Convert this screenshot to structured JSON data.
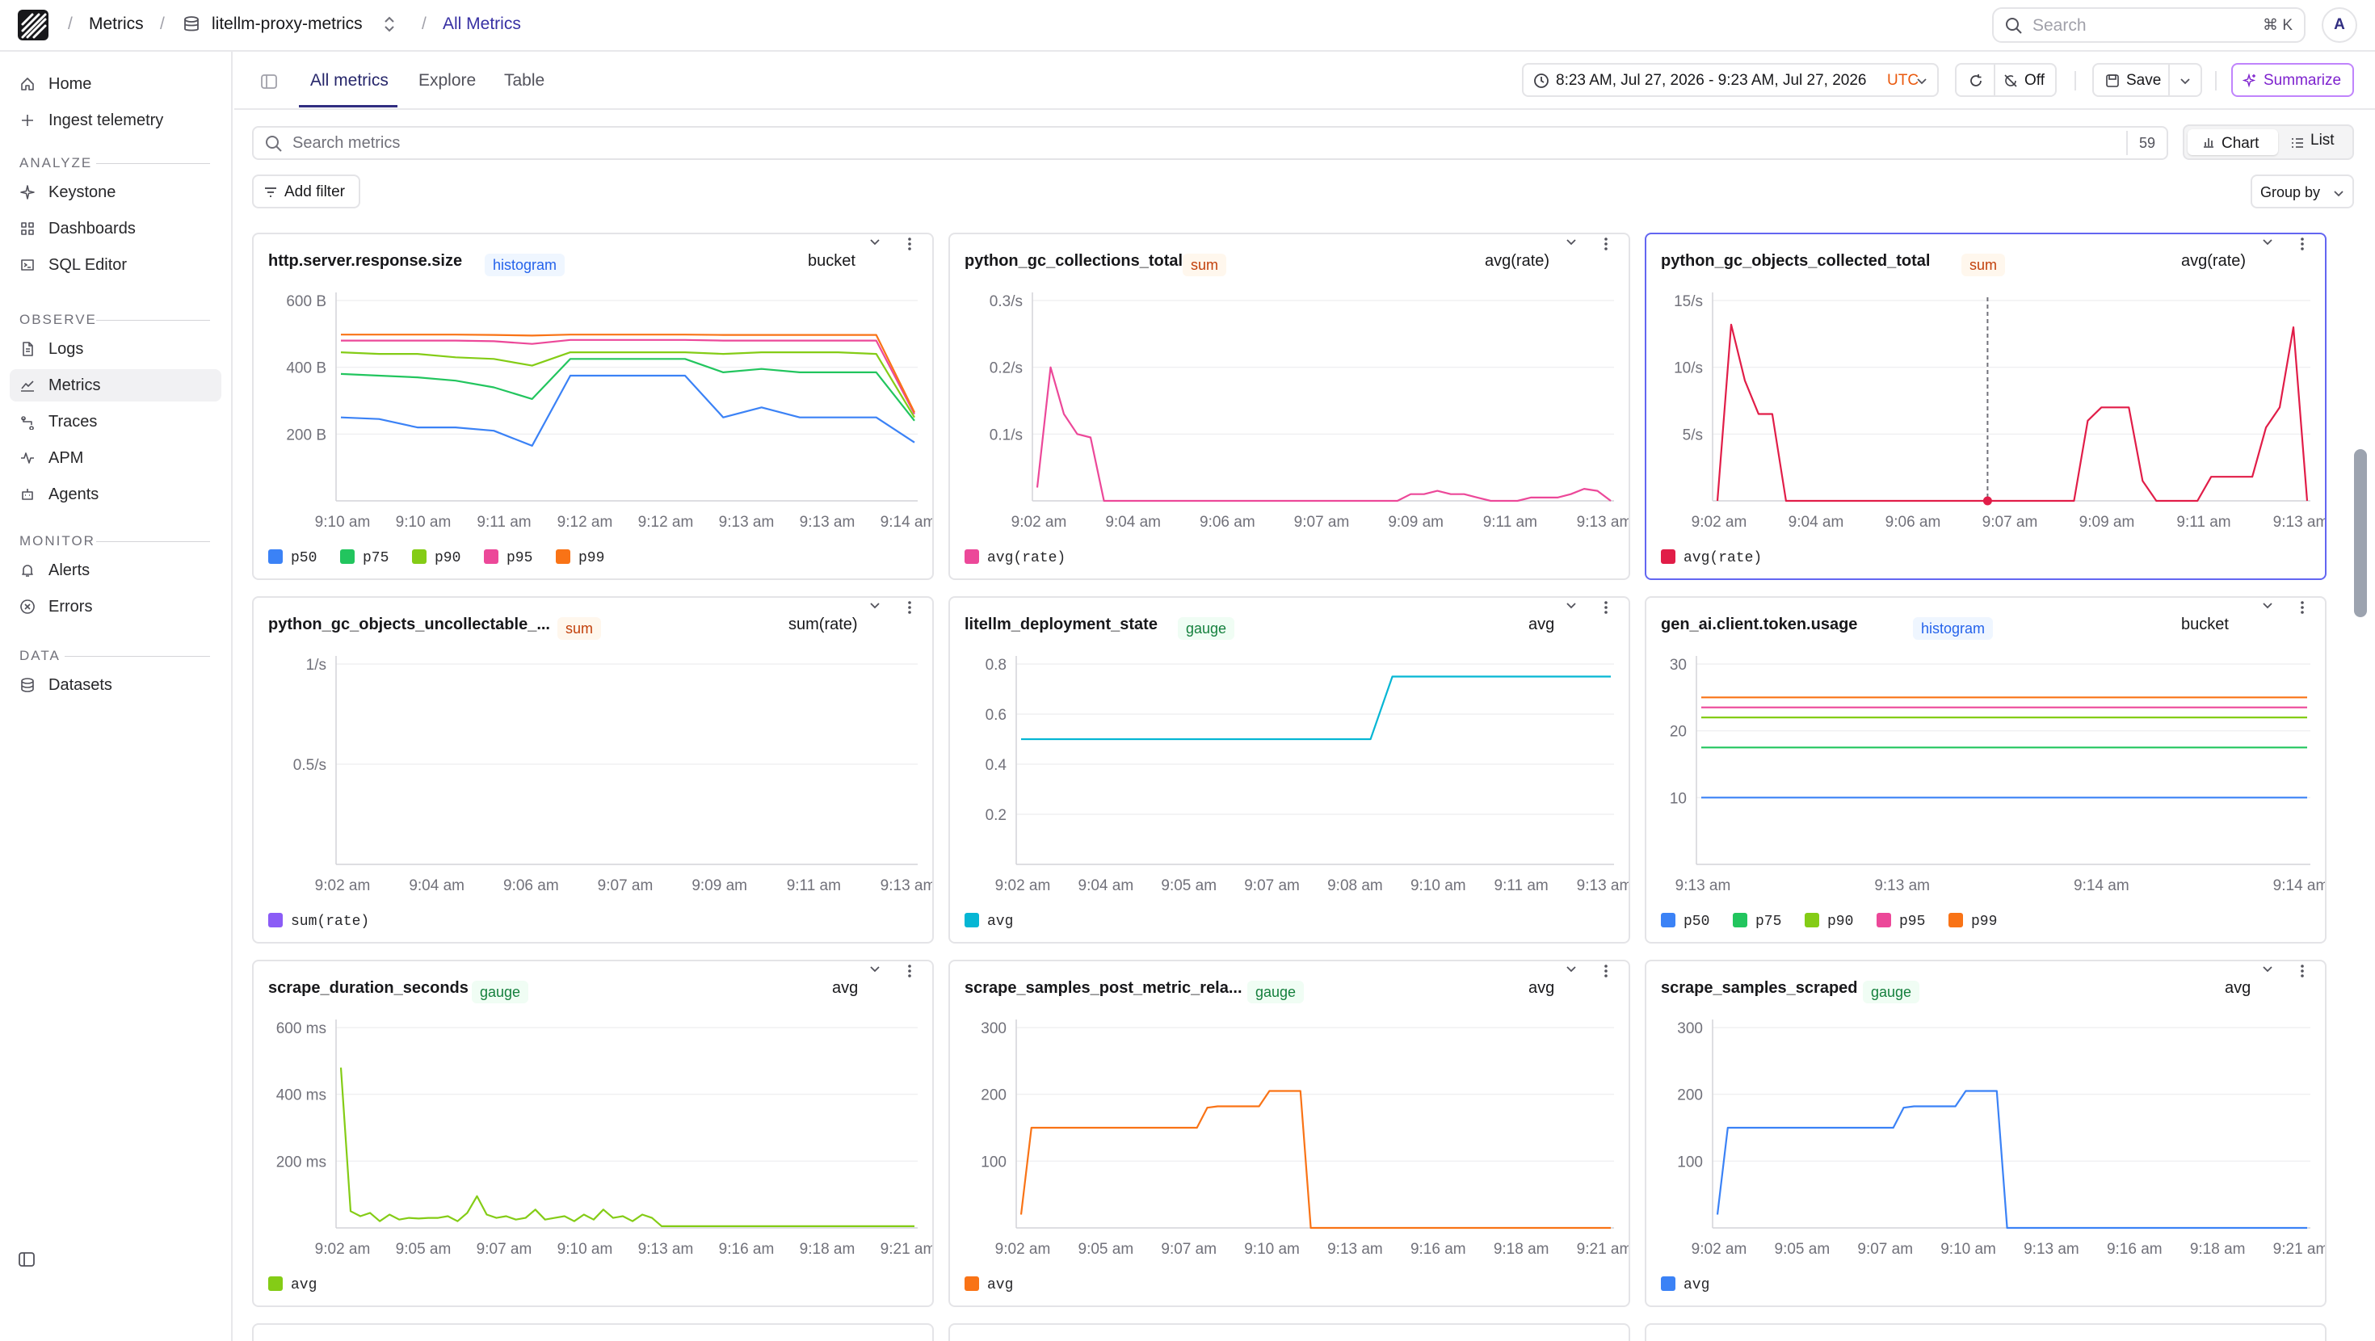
{
  "topbar": {
    "crumbs": [
      "Metrics",
      "litellm-proxy-metrics",
      "All Metrics"
    ],
    "search_placeholder": "Search",
    "search_shortcut": "⌘ K",
    "avatar_initial": "A"
  },
  "sidebar": {
    "top_items": [
      {
        "label": "Home",
        "icon": "home-icon"
      },
      {
        "label": "Ingest telemetry",
        "icon": "plus-icon"
      }
    ],
    "sections": [
      {
        "title": "ANALYZE",
        "items": [
          {
            "label": "Keystone",
            "icon": "sparkle-icon"
          },
          {
            "label": "Dashboards",
            "icon": "grid-icon"
          },
          {
            "label": "SQL Editor",
            "icon": "terminal-icon"
          }
        ]
      },
      {
        "title": "OBSERVE",
        "items": [
          {
            "label": "Logs",
            "icon": "file-icon"
          },
          {
            "label": "Metrics",
            "icon": "chart-line-icon",
            "active": true
          },
          {
            "label": "Traces",
            "icon": "route-icon"
          },
          {
            "label": "APM",
            "icon": "pulse-icon"
          },
          {
            "label": "Agents",
            "icon": "bot-icon"
          }
        ]
      },
      {
        "title": "MONITOR",
        "items": [
          {
            "label": "Alerts",
            "icon": "bell-icon"
          },
          {
            "label": "Errors",
            "icon": "error-circle-icon"
          }
        ]
      },
      {
        "title": "DATA",
        "items": [
          {
            "label": "Datasets",
            "icon": "database-icon"
          }
        ]
      }
    ]
  },
  "tabs": [
    "All metrics",
    "Explore",
    "Table"
  ],
  "toolbar": {
    "time_range": "8:23 AM, Jul 27, 2026 - 9:23 AM, Jul 27, 2026",
    "timezone": "UTC",
    "refresh_label": "Off",
    "save_label": "Save",
    "summarize_label": "Summarize"
  },
  "metrics_search": {
    "placeholder": "Search metrics",
    "count": "59"
  },
  "view_toggle": {
    "chart": "Chart",
    "list": "List"
  },
  "add_filter_label": "Add filter",
  "group_by_label": "Group by",
  "colors": {
    "accent": "#312e81",
    "p50": "#3b82f6",
    "p75": "#22c55e",
    "p90": "#84cc16",
    "p95": "#ec4899",
    "p99": "#f97316",
    "badge_histogram": "#2563eb",
    "badge_sum": "#c2410c",
    "badge_gauge": "#15803d"
  },
  "cards": [
    {
      "title": "http.server.response.size",
      "badge": "histogram",
      "agg": "bucket",
      "chart_data": {
        "type": "line",
        "yticks": [
          "600 B",
          "400 B",
          "200 B"
        ],
        "ytick_values": [
          600,
          400,
          200
        ],
        "ylim": [
          0,
          600
        ],
        "xticks": [
          "9:10 am",
          "9:10 am",
          "9:11 am",
          "9:12 am",
          "9:12 am",
          "9:13 am",
          "9:13 am",
          "9:14 am"
        ],
        "series": [
          {
            "name": "p50",
            "color": "#3b82f6",
            "values": [
              250,
              245,
              220,
              220,
              210,
              165,
              375,
              375,
              375,
              375,
              250,
              280,
              250,
              250,
              250,
              175
            ]
          },
          {
            "name": "p75",
            "color": "#22c55e",
            "values": [
              380,
              375,
              370,
              360,
              340,
              305,
              425,
              425,
              425,
              425,
              385,
              395,
              385,
              385,
              385,
              240
            ]
          },
          {
            "name": "p90",
            "color": "#84cc16",
            "values": [
              445,
              440,
              440,
              430,
              425,
              405,
              445,
              445,
              445,
              445,
              440,
              445,
              445,
              445,
              440,
              250
            ]
          },
          {
            "name": "p95",
            "color": "#ec4899",
            "values": [
              480,
              480,
              480,
              480,
              478,
              470,
              482,
              482,
              482,
              482,
              480,
              480,
              480,
              480,
              480,
              260
            ]
          },
          {
            "name": "p99",
            "color": "#f97316",
            "values": [
              498,
              498,
              498,
              498,
              497,
              495,
              498,
              498,
              498,
              498,
              497,
              497,
              497,
              497,
              497,
              265
            ]
          }
        ]
      }
    },
    {
      "title": "python_gc_collections_total",
      "badge": "sum",
      "agg": "avg(rate)",
      "chart_data": {
        "type": "line",
        "yticks": [
          "0.3/s",
          "0.2/s",
          "0.1/s"
        ],
        "ytick_values": [
          0.3,
          0.2,
          0.1
        ],
        "ylim": [
          0,
          0.3
        ],
        "xticks": [
          "9:02 am",
          "9:04 am",
          "9:06 am",
          "9:07 am",
          "9:09 am",
          "9:11 am",
          "9:13 am"
        ],
        "series": [
          {
            "name": "avg(rate)",
            "color": "#ec4899",
            "values": [
              0.02,
              0.2,
              0.13,
              0.1,
              0.095,
              0,
              0,
              0,
              0,
              0,
              0,
              0,
              0,
              0,
              0,
              0,
              0,
              0,
              0,
              0,
              0,
              0,
              0,
              0,
              0,
              0,
              0,
              0,
              0.01,
              0.01,
              0.015,
              0.01,
              0.01,
              0.005,
              0,
              0,
              0,
              0.005,
              0.005,
              0.005,
              0.01,
              0.018,
              0.015,
              0
            ]
          }
        ]
      }
    },
    {
      "title": "python_gc_objects_collected_total",
      "badge": "sum",
      "agg": "avg(rate)",
      "selected": true,
      "chart_data": {
        "type": "line",
        "yticks": [
          "15/s",
          "10/s",
          "5/s"
        ],
        "ytick_values": [
          15,
          10,
          5
        ],
        "ylim": [
          0,
          15
        ],
        "xticks": [
          "9:02 am",
          "9:04 am",
          "9:06 am",
          "9:07 am",
          "9:09 am",
          "9:11 am",
          "9:13 am"
        ],
        "cursor_x": 0.46,
        "series": [
          {
            "name": "avg(rate)",
            "color": "#e11d48",
            "values": [
              0,
              13.2,
              9,
              6.5,
              6.5,
              0,
              0,
              0,
              0,
              0,
              0,
              0,
              0,
              0,
              0,
              0,
              0,
              0,
              0,
              0,
              0,
              0,
              0,
              0,
              0,
              0,
              0,
              6,
              7,
              7,
              7,
              1.5,
              0,
              0,
              0,
              0,
              1.8,
              1.8,
              1.8,
              1.8,
              5.5,
              7,
              13,
              0
            ]
          }
        ]
      }
    },
    {
      "title": "python_gc_objects_uncollectable_...",
      "badge": "sum",
      "agg": "sum(rate)",
      "chart_data": {
        "type": "line",
        "yticks": [
          "1/s",
          "0.5/s"
        ],
        "ytick_values": [
          1,
          0.5
        ],
        "ylim": [
          0,
          1
        ],
        "xticks": [
          "9:02 am",
          "9:04 am",
          "9:06 am",
          "9:07 am",
          "9:09 am",
          "9:11 am",
          "9:13 am"
        ],
        "series": [
          {
            "name": "sum(rate)",
            "color": "#8b5cf6",
            "values": []
          }
        ]
      }
    },
    {
      "title": "litellm_deployment_state",
      "badge": "gauge",
      "agg": "avg",
      "chart_data": {
        "type": "line",
        "yticks": [
          "0.8",
          "0.6",
          "0.4",
          "0.2"
        ],
        "ytick_values": [
          0.8,
          0.6,
          0.4,
          0.2
        ],
        "ylim": [
          0,
          0.8
        ],
        "xticks": [
          "9:02 am",
          "9:04 am",
          "9:05 am",
          "9:07 am",
          "9:08 am",
          "9:10 am",
          "9:11 am",
          "9:13 am"
        ],
        "series": [
          {
            "name": "avg",
            "color": "#06b6d4",
            "values": [
              0.5,
              0.5,
              0.5,
              0.5,
              0.5,
              0.5,
              0.5,
              0.5,
              0.5,
              0.5,
              0.5,
              0.5,
              0.5,
              0.5,
              0.5,
              0.5,
              0.5,
              0.75,
              0.75,
              0.75,
              0.75,
              0.75,
              0.75,
              0.75,
              0.75,
              0.75,
              0.75,
              0.75
            ]
          }
        ]
      }
    },
    {
      "title": "gen_ai.client.token.usage",
      "badge": "histogram",
      "agg": "bucket",
      "chart_data": {
        "type": "line",
        "yticks": [
          "30",
          "20",
          "10"
        ],
        "ytick_values": [
          30,
          20,
          10
        ],
        "ylim": [
          0,
          30
        ],
        "xticks": [
          "9:13 am",
          "9:13 am",
          "9:14 am",
          "9:14 am"
        ],
        "series": [
          {
            "name": "p50",
            "color": "#3b82f6",
            "values": [
              10,
              10
            ]
          },
          {
            "name": "p75",
            "color": "#22c55e",
            "values": [
              17.5,
              17.5
            ]
          },
          {
            "name": "p90",
            "color": "#84cc16",
            "values": [
              22,
              22
            ]
          },
          {
            "name": "p95",
            "color": "#ec4899",
            "values": [
              23.5,
              23.5
            ]
          },
          {
            "name": "p99",
            "color": "#f97316",
            "values": [
              25,
              25
            ]
          }
        ]
      }
    },
    {
      "title": "scrape_duration_seconds",
      "badge": "gauge",
      "agg": "avg",
      "chart_data": {
        "type": "line",
        "yticks": [
          "600 ms",
          "400 ms",
          "200 ms"
        ],
        "ytick_values": [
          600,
          400,
          200
        ],
        "ylim": [
          0,
          600
        ],
        "xticks": [
          "9:02 am",
          "9:05 am",
          "9:07 am",
          "9:10 am",
          "9:13 am",
          "9:16 am",
          "9:18 am",
          "9:21 am"
        ],
        "series": [
          {
            "name": "avg",
            "color": "#84cc16",
            "values": [
              480,
              50,
              35,
              45,
              20,
              40,
              25,
              30,
              28,
              30,
              30,
              35,
              20,
              45,
              95,
              40,
              30,
              35,
              25,
              30,
              55,
              25,
              30,
              35,
              20,
              40,
              25,
              55,
              30,
              35,
              20,
              40,
              30,
              5,
              5,
              5,
              5,
              5,
              5,
              5,
              5,
              5,
              5,
              5,
              5,
              5,
              5,
              5,
              5,
              5,
              5,
              5,
              5,
              5,
              5,
              5,
              5,
              5,
              5,
              5
            ]
          }
        ]
      }
    },
    {
      "title": "scrape_samples_post_metric_rela...",
      "badge": "gauge",
      "agg": "avg",
      "chart_data": {
        "type": "line",
        "yticks": [
          "300",
          "200",
          "100"
        ],
        "ytick_values": [
          300,
          200,
          100
        ],
        "ylim": [
          0,
          300
        ],
        "xticks": [
          "9:02 am",
          "9:05 am",
          "9:07 am",
          "9:10 am",
          "9:13 am",
          "9:16 am",
          "9:18 am",
          "9:21 am"
        ],
        "series": [
          {
            "name": "avg",
            "color": "#f97316",
            "values": [
              20,
              150,
              150,
              150,
              150,
              150,
              150,
              150,
              150,
              150,
              150,
              150,
              150,
              150,
              150,
              150,
              150,
              150,
              180,
              182,
              182,
              182,
              182,
              182,
              205,
              205,
              205,
              205,
              0,
              0,
              0,
              0,
              0,
              0,
              0,
              0,
              0,
              0,
              0,
              0,
              0,
              0,
              0,
              0,
              0,
              0,
              0,
              0,
              0,
              0,
              0,
              0,
              0,
              0,
              0,
              0,
              0,
              0
            ]
          }
        ]
      }
    },
    {
      "title": "scrape_samples_scraped",
      "badge": "gauge",
      "agg": "avg",
      "chart_data": {
        "type": "line",
        "yticks": [
          "300",
          "200",
          "100"
        ],
        "ytick_values": [
          300,
          200,
          100
        ],
        "ylim": [
          0,
          300
        ],
        "xticks": [
          "9:02 am",
          "9:05 am",
          "9:07 am",
          "9:10 am",
          "9:13 am",
          "9:16 am",
          "9:18 am",
          "9:21 am"
        ],
        "series": [
          {
            "name": "avg",
            "color": "#3b82f6",
            "values": [
              20,
              150,
              150,
              150,
              150,
              150,
              150,
              150,
              150,
              150,
              150,
              150,
              150,
              150,
              150,
              150,
              150,
              150,
              180,
              182,
              182,
              182,
              182,
              182,
              205,
              205,
              205,
              205,
              0,
              0,
              0,
              0,
              0,
              0,
              0,
              0,
              0,
              0,
              0,
              0,
              0,
              0,
              0,
              0,
              0,
              0,
              0,
              0,
              0,
              0,
              0,
              0,
              0,
              0,
              0,
              0,
              0,
              0
            ]
          }
        ]
      }
    }
  ]
}
